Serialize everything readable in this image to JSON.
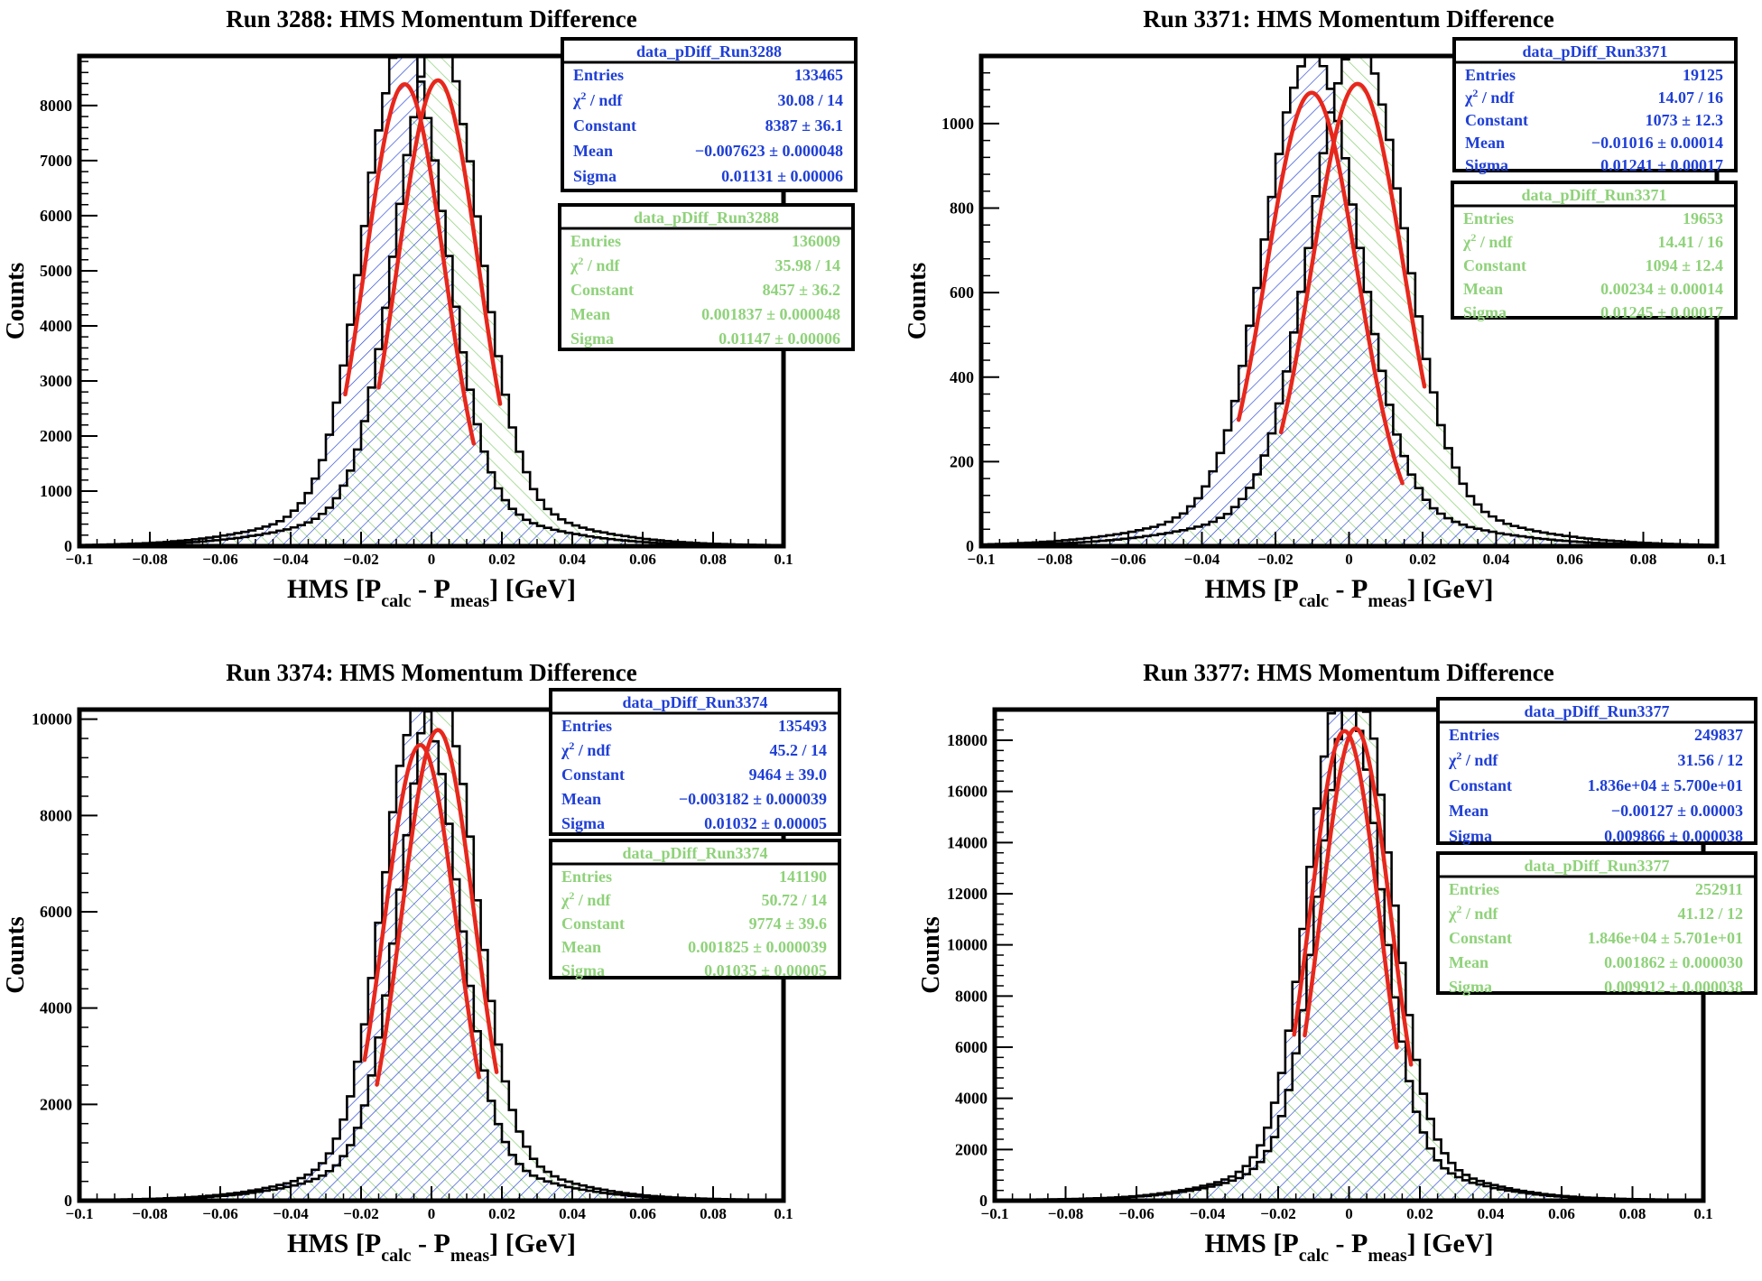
{
  "page": {
    "description_colors": {
      "blue": "#1f3fd6",
      "green": "#8fd27a",
      "red": "#e8271c",
      "frame": "#000000"
    }
  },
  "chart_data": [
    {
      "type": "histogram",
      "title": "Run 3288: HMS Momentum Difference",
      "xlabel": {
        "main": "HMS [P",
        "sub1": "calc",
        "mid": " - P",
        "sub2": "meas",
        "end": "] [GeV]"
      },
      "ylabel": "Counts",
      "xlim": [
        -0.1,
        0.1
      ],
      "ylim": [
        0,
        8900
      ],
      "xticks": [
        -0.1,
        -0.08,
        -0.06,
        -0.04,
        -0.02,
        0,
        0.02,
        0.04,
        0.06,
        0.08,
        0.1
      ],
      "xtick_labels": [
        "−0.1",
        "−0.08",
        "−0.06",
        "−0.04",
        "−0.02",
        "0",
        "0.02",
        "0.04",
        "0.06",
        "0.08",
        "0.1"
      ],
      "yticks": [
        0,
        1000,
        2000,
        3000,
        4000,
        5000,
        6000,
        7000,
        8000
      ],
      "ytick_labels": [
        "0",
        "1000",
        "2000",
        "3000",
        "4000",
        "5000",
        "6000",
        "7000",
        "8000"
      ],
      "series": [
        {
          "name": "data_pDiff_Run3288",
          "color": "#1f3fd6",
          "entries": 133465,
          "constant": 8387,
          "mean": -0.007623,
          "sigma": 0.01131,
          "fit_range": [
            -0.0245,
            0.012
          ],
          "stats": [
            [
              "Entries",
              "133465"
            ],
            [
              "χ² / ndf",
              "30.08 / 14"
            ],
            [
              "Constant",
              "8387  ± 36.1"
            ],
            [
              "Mean",
              "−0.007623  ± 0.000048"
            ],
            [
              "Sigma",
              "0.01131  ± 0.00006"
            ]
          ]
        },
        {
          "name": "data_pDiff_Run3288",
          "color": "#8fd27a",
          "entries": 136009,
          "constant": 8457,
          "mean": 0.001837,
          "sigma": 0.01147,
          "fit_range": [
            -0.015,
            0.0195
          ],
          "stats": [
            [
              "Entries",
              "136009"
            ],
            [
              "χ² / ndf",
              "35.98 / 14"
            ],
            [
              "Constant",
              "8457  ± 36.2"
            ],
            [
              "Mean",
              "0.001837  ± 0.000048"
            ],
            [
              "Sigma",
              "0.01147  ± 0.00006"
            ]
          ]
        }
      ]
    },
    {
      "type": "histogram",
      "title": "Run 3371: HMS Momentum Difference",
      "xlabel": {
        "main": "HMS [P",
        "sub1": "calc",
        "mid": " - P",
        "sub2": "meas",
        "end": "] [GeV]"
      },
      "ylabel": "Counts",
      "xlim": [
        -0.1,
        0.1
      ],
      "ylim": [
        0,
        1160
      ],
      "xticks": [
        -0.1,
        -0.08,
        -0.06,
        -0.04,
        -0.02,
        0,
        0.02,
        0.04,
        0.06,
        0.08,
        0.1
      ],
      "xtick_labels": [
        "−0.1",
        "−0.08",
        "−0.06",
        "−0.04",
        "−0.02",
        "0",
        "0.02",
        "0.04",
        "0.06",
        "0.08",
        "0.1"
      ],
      "yticks": [
        0,
        200,
        400,
        600,
        800,
        1000
      ],
      "ytick_labels": [
        "0",
        "200",
        "400",
        "600",
        "800",
        "1000"
      ],
      "series": [
        {
          "name": "data_pDiff_Run3371",
          "color": "#1f3fd6",
          "entries": 19125,
          "constant": 1073,
          "mean": -0.01016,
          "sigma": 0.01241,
          "fit_range": [
            -0.03,
            0.0145
          ],
          "stats": [
            [
              "Entries",
              "19125"
            ],
            [
              "χ² / ndf",
              "14.07 / 16"
            ],
            [
              "Constant",
              "1073  ± 12.3"
            ],
            [
              "Mean",
              "−0.01016  ± 0.00014"
            ],
            [
              "Sigma",
              "0.01241  ± 0.00017"
            ]
          ]
        },
        {
          "name": "data_pDiff_Run3371",
          "color": "#8fd27a",
          "entries": 19653,
          "constant": 1094,
          "mean": 0.00234,
          "sigma": 0.01245,
          "fit_range": [
            -0.0185,
            0.0205
          ],
          "stats": [
            [
              "Entries",
              "19653"
            ],
            [
              "χ² / ndf",
              "14.41 / 16"
            ],
            [
              "Constant",
              "1094  ± 12.4"
            ],
            [
              "Mean",
              "0.00234  ± 0.00014"
            ],
            [
              "Sigma",
              "0.01245  ± 0.00017"
            ]
          ]
        }
      ]
    },
    {
      "type": "histogram",
      "title": "Run 3374: HMS Momentum Difference",
      "xlabel": {
        "main": "HMS [P",
        "sub1": "calc",
        "mid": " - P",
        "sub2": "meas",
        "end": "] [GeV]"
      },
      "ylabel": "Counts",
      "xlim": [
        -0.1,
        0.1
      ],
      "ylim": [
        0,
        10200
      ],
      "xticks": [
        -0.1,
        -0.08,
        -0.06,
        -0.04,
        -0.02,
        0,
        0.02,
        0.04,
        0.06,
        0.08,
        0.1
      ],
      "xtick_labels": [
        "−0.1",
        "−0.08",
        "−0.06",
        "−0.04",
        "−0.02",
        "0",
        "0.02",
        "0.04",
        "0.06",
        "0.08",
        "0.1"
      ],
      "yticks": [
        0,
        2000,
        4000,
        6000,
        8000,
        10000
      ],
      "ytick_labels": [
        "0",
        "2000",
        "4000",
        "6000",
        "8000",
        "10000"
      ],
      "series": [
        {
          "name": "data_pDiff_Run3374",
          "color": "#1f3fd6",
          "entries": 135493,
          "constant": 9464,
          "mean": -0.003182,
          "sigma": 0.01032,
          "fit_range": [
            -0.019,
            0.0135
          ],
          "stats": [
            [
              "Entries",
              "135493"
            ],
            [
              "χ² / ndf",
              "45.2 / 14"
            ],
            [
              "Constant",
              "9464  ± 39.0"
            ],
            [
              "Mean",
              "−0.003182  ± 0.000039"
            ],
            [
              "Sigma",
              "0.01032  ± 0.00005"
            ]
          ]
        },
        {
          "name": "data_pDiff_Run3374",
          "color": "#8fd27a",
          "entries": 141190,
          "constant": 9774,
          "mean": 0.001825,
          "sigma": 0.01035,
          "fit_range": [
            -0.0155,
            0.0185
          ],
          "stats": [
            [
              "Entries",
              "141190"
            ],
            [
              "χ² / ndf",
              "50.72 / 14"
            ],
            [
              "Constant",
              "9774  ± 39.6"
            ],
            [
              "Mean",
              "0.001825  ± 0.000039"
            ],
            [
              "Sigma",
              "0.01035  ± 0.00005"
            ]
          ]
        }
      ]
    },
    {
      "type": "histogram",
      "title": "Run 3377: HMS Momentum Difference",
      "xlabel": {
        "main": "HMS [P",
        "sub1": "calc",
        "mid": " - P",
        "sub2": "meas",
        "end": "] [GeV]"
      },
      "ylabel": "Counts",
      "xlim": [
        -0.1,
        0.1
      ],
      "ylim": [
        0,
        19200
      ],
      "xticks": [
        -0.1,
        -0.08,
        -0.06,
        -0.04,
        -0.02,
        0,
        0.02,
        0.04,
        0.06,
        0.08,
        0.1
      ],
      "xtick_labels": [
        "−0.1",
        "−0.08",
        "−0.06",
        "−0.04",
        "−0.02",
        "0",
        "0.02",
        "0.04",
        "0.06",
        "0.08",
        "0.1"
      ],
      "yticks": [
        0,
        2000,
        4000,
        6000,
        8000,
        10000,
        12000,
        14000,
        16000,
        18000
      ],
      "ytick_labels": [
        "0",
        "2000",
        "4000",
        "6000",
        "8000",
        "10000",
        "12000",
        "14000",
        "16000",
        "18000"
      ],
      "series": [
        {
          "name": "data_pDiff_Run3377",
          "color": "#1f3fd6",
          "entries": 249837,
          "constant": 18360,
          "mean": -0.00127,
          "sigma": 0.009866,
          "fit_range": [
            -0.0155,
            0.0135
          ],
          "stats": [
            [
              "Entries",
              "249837"
            ],
            [
              "χ² / ndf",
              "31.56 / 12"
            ],
            [
              "Constant",
              "1.836e+04  ± 5.700e+01"
            ],
            [
              "Mean",
              "−0.00127  ± 0.00003"
            ],
            [
              "Sigma",
              "0.009866  ± 0.000038"
            ]
          ]
        },
        {
          "name": "data_pDiff_Run3377",
          "color": "#8fd27a",
          "entries": 252911,
          "constant": 18460,
          "mean": 0.001862,
          "sigma": 0.009912,
          "fit_range": [
            -0.0125,
            0.0175
          ],
          "stats": [
            [
              "Entries",
              "252911"
            ],
            [
              "χ² / ndf",
              "41.12 / 12"
            ],
            [
              "Constant",
              "1.846e+04  ± 5.701e+01"
            ],
            [
              "Mean",
              "0.001862  ± 0.000030"
            ],
            [
              "Sigma",
              "0.009912  ± 0.000038"
            ]
          ]
        }
      ]
    }
  ]
}
